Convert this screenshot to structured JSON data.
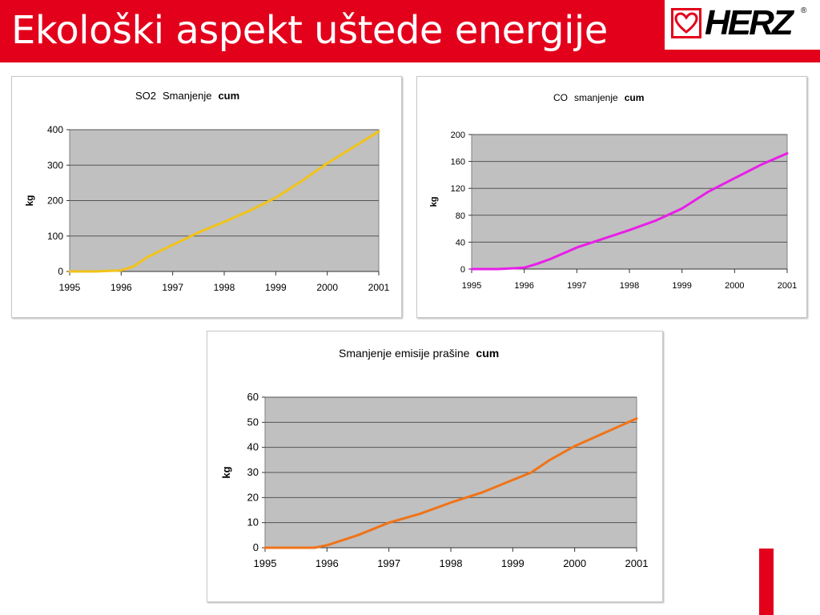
{
  "slide": {
    "title": "Ekološki aspekt uštede energije",
    "accent_color": "#e3001b"
  },
  "logo": {
    "text": "HERZ",
    "registered_mark": "®"
  },
  "chart_data": [
    {
      "type": "line",
      "title_parts": [
        "SO2",
        "Smanjenje",
        "cum"
      ],
      "ylabel": "kg",
      "ylim": [
        0,
        400
      ],
      "yticks": [
        "0",
        "100",
        "200",
        "300",
        "400"
      ],
      "categories": [
        "1995",
        "1996",
        "1997",
        "1998",
        "1999",
        "2000",
        "2001"
      ],
      "grid": true,
      "plot_background": "#c0c0c0",
      "series": [
        {
          "color": "#f2c318",
          "x": [
            1995,
            1995.5,
            1996,
            1996.25,
            1996.5,
            1997,
            1997.5,
            1998,
            1998.5,
            1999,
            1999.5,
            2000,
            2000.5,
            2001
          ],
          "y": [
            0,
            0,
            3,
            15,
            40,
            75,
            110,
            140,
            172,
            208,
            255,
            305,
            350,
            395
          ]
        }
      ]
    },
    {
      "type": "line",
      "title_parts": [
        "CO",
        "smanjenje",
        "cum"
      ],
      "ylabel": "kg",
      "ylim": [
        0,
        200
      ],
      "yticks": [
        "0",
        "40",
        "80",
        "120",
        "160",
        "200"
      ],
      "categories": [
        "1995",
        "1996",
        "1997",
        "1998",
        "1999",
        "2000",
        "2001"
      ],
      "grid": true,
      "plot_background": "#c0c0c0",
      "series": [
        {
          "color": "#e81ee8",
          "x": [
            1995,
            1995.5,
            1996,
            1996.25,
            1996.5,
            1997,
            1997.5,
            1998,
            1998.5,
            1999,
            1999.5,
            2000,
            2000.5,
            2001
          ],
          "y": [
            0,
            0,
            2,
            8,
            15,
            32,
            45,
            58,
            72,
            90,
            115,
            135,
            155,
            172
          ]
        }
      ]
    },
    {
      "type": "line",
      "title_parts": [
        "Smanjenje emisije prašine",
        "cum"
      ],
      "ylabel": "kg",
      "ylim": [
        0,
        60
      ],
      "yticks": [
        "0",
        "10",
        "20",
        "30",
        "40",
        "50",
        "60"
      ],
      "categories": [
        "1995",
        "1996",
        "1997",
        "1998",
        "1999",
        "2000",
        "2001"
      ],
      "grid": true,
      "plot_background": "#c0c0c0",
      "series": [
        {
          "color": "#f07318",
          "x": [
            1995,
            1995.5,
            1995.8,
            1996,
            1996.5,
            1997,
            1997.5,
            1998,
            1998.5,
            1999,
            1999.3,
            1999.6,
            2000,
            2000.5,
            2001
          ],
          "y": [
            0,
            0,
            0,
            1,
            5,
            10,
            13.5,
            18,
            22,
            27,
            30,
            35,
            40.5,
            46,
            51.5
          ]
        }
      ]
    }
  ]
}
